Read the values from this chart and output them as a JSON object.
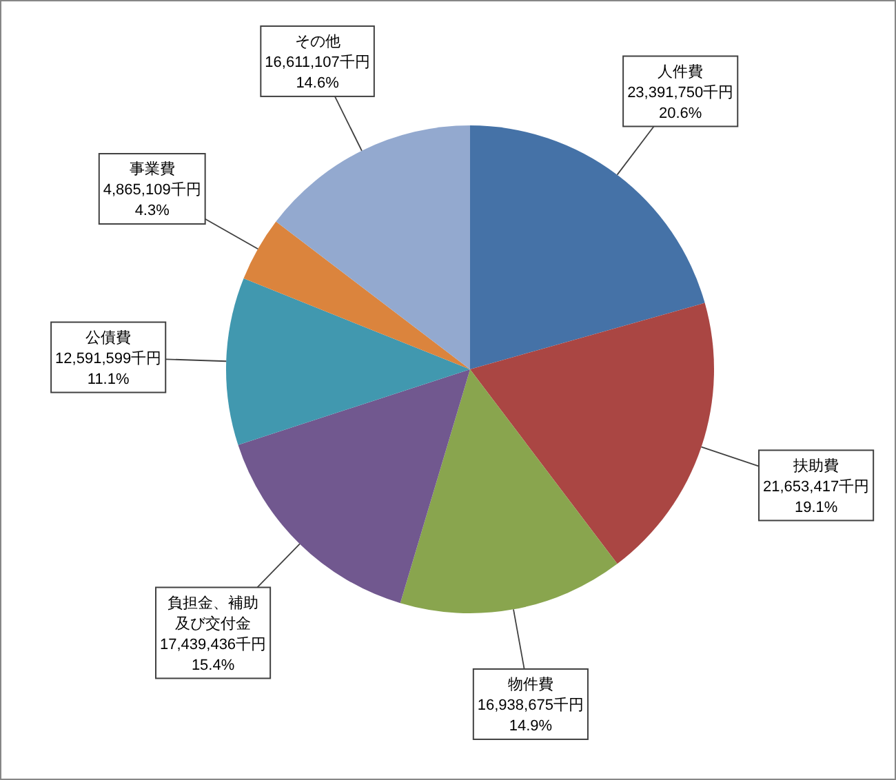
{
  "chart_data": {
    "type": "pie",
    "categories": [
      "人件費",
      "扶助費",
      "物件費",
      "負担金、補助及び交付金",
      "公債費",
      "事業費",
      "その他"
    ],
    "values": [
      23391750,
      21653417,
      16938675,
      17439436,
      12591599,
      4865109,
      16611107
    ],
    "colors": [
      "#4572a7",
      "#aa4643",
      "#89a54e",
      "#71588f",
      "#4198af",
      "#db843d",
      "#93a9cf"
    ],
    "value_labels": [
      "23,391,750千円\n20.6%",
      "21,653,417千円\n19.1%",
      "16,938,675千円\n14.9%",
      "17,439,436千円\n15.4%",
      "12,591,599千円\n11.1%",
      "4,865,109千円\n4.3%",
      "16,611,107千円\n14.6%"
    ]
  }
}
